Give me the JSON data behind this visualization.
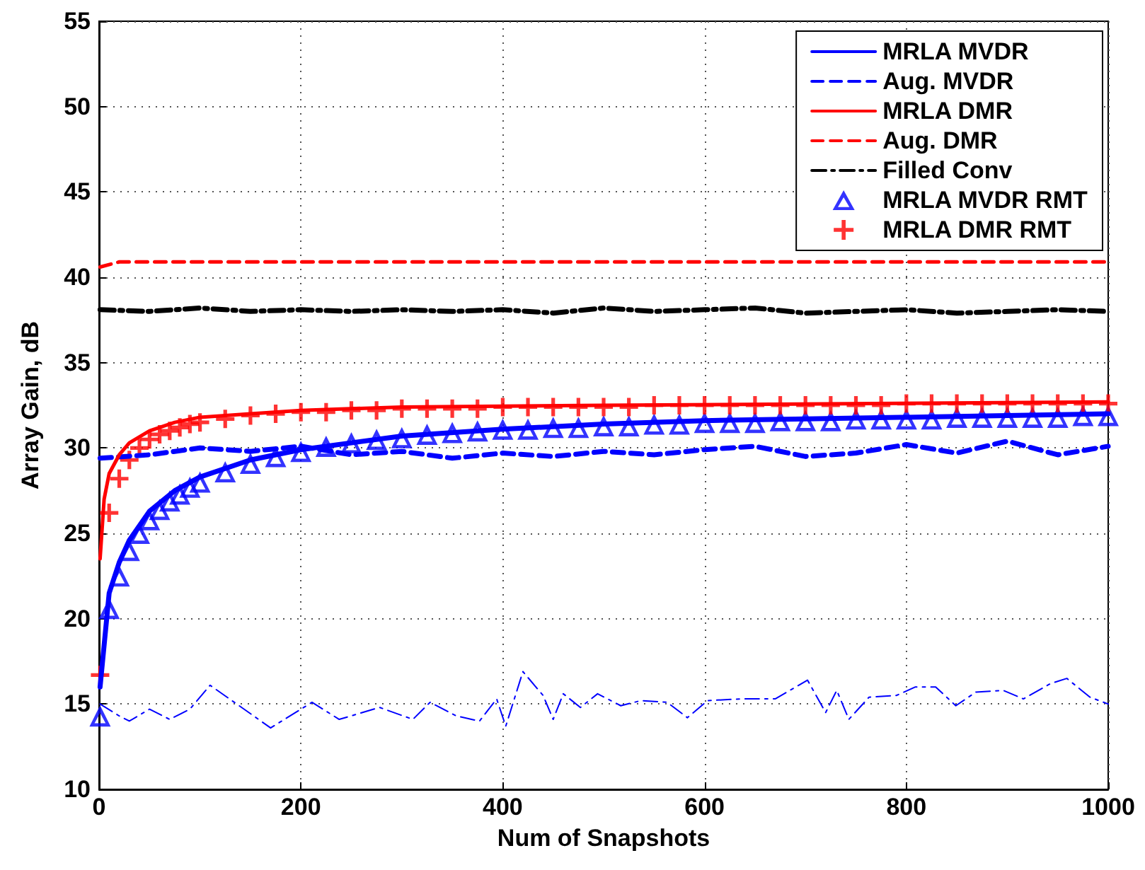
{
  "chart_data": {
    "type": "line",
    "xlabel": "Num of Snapshots",
    "ylabel": "Array Gain, dB",
    "xlim": [
      0,
      1000
    ],
    "xticks": [
      0,
      200,
      400,
      600,
      800,
      1000
    ],
    "ylim": [
      10,
      55
    ],
    "yticks": [
      10,
      15,
      20,
      25,
      30,
      35,
      40,
      45,
      50,
      55
    ],
    "grid": true,
    "legend": "top right",
    "series": [
      {
        "name": "MRLA MVDR",
        "color": "#0000ff",
        "line_style": "solid",
        "marker": "none",
        "x": [
          1,
          10,
          20,
          30,
          50,
          75,
          100,
          150,
          200,
          300,
          400,
          500,
          600,
          700,
          800,
          900,
          1000
        ],
        "values": [
          16,
          21.5,
          23.3,
          24.6,
          26.3,
          27.5,
          28.3,
          29.3,
          29.9,
          30.7,
          31.1,
          31.4,
          31.6,
          31.7,
          31.8,
          31.9,
          32.0
        ]
      },
      {
        "name": "Aug. MVDR",
        "color": "#0000ff",
        "line_style": "dashed",
        "marker": "none",
        "x": [
          1,
          50,
          100,
          150,
          200,
          250,
          300,
          350,
          400,
          450,
          500,
          550,
          600,
          650,
          700,
          750,
          800,
          850,
          900,
          950,
          1000
        ],
        "values": [
          29.4,
          29.6,
          30,
          29.8,
          30.1,
          29.6,
          29.8,
          29.4,
          29.7,
          29.5,
          29.8,
          29.6,
          29.9,
          30.1,
          29.5,
          29.7,
          30.2,
          29.7,
          30.4,
          29.6,
          30.1
        ]
      },
      {
        "name": "MRLA DMR",
        "color": "#ff0000",
        "line_style": "solid",
        "marker": "none",
        "x": [
          1,
          5,
          10,
          20,
          30,
          50,
          75,
          100,
          150,
          200,
          300,
          500,
          1000
        ],
        "values": [
          23.5,
          27,
          28.5,
          29.6,
          30.3,
          31,
          31.5,
          31.8,
          32,
          32.2,
          32.4,
          32.5,
          32.7
        ]
      },
      {
        "name": "Aug. DMR",
        "color": "#ff0000",
        "line_style": "dashed",
        "marker": "none",
        "x": [
          1,
          20,
          1000
        ],
        "values": [
          40.6,
          40.9,
          40.9
        ]
      },
      {
        "name": "Filled Conv",
        "color": "#000000",
        "line_style": "dashdot",
        "marker": "none",
        "x": [
          1,
          50,
          100,
          150,
          200,
          250,
          300,
          350,
          400,
          450,
          500,
          550,
          600,
          650,
          700,
          750,
          800,
          850,
          900,
          950,
          1000
        ],
        "values": [
          38.1,
          38.0,
          38.2,
          38.0,
          38.1,
          38.0,
          38.1,
          38.0,
          38.1,
          37.9,
          38.2,
          38.0,
          38.1,
          38.2,
          37.9,
          38.0,
          38.1,
          37.9,
          38.0,
          38.1,
          38.0
        ]
      },
      {
        "type": "scatter",
        "name": "MRLA MVDR RMT",
        "color": "#0000ff",
        "marker": "triangle",
        "x": [
          1,
          10,
          20,
          30,
          40,
          50,
          60,
          70,
          80,
          90,
          100,
          125,
          150,
          175,
          200,
          225,
          250,
          275,
          300,
          325,
          350,
          375,
          400,
          425,
          450,
          475,
          500,
          525,
          550,
          575,
          600,
          625,
          650,
          675,
          700,
          725,
          750,
          775,
          800,
          825,
          850,
          875,
          900,
          925,
          950,
          975,
          1000
        ],
        "values": [
          14.3,
          20.6,
          22.5,
          24,
          25,
          25.8,
          26.4,
          26.9,
          27.3,
          27.7,
          28,
          28.6,
          29.1,
          29.5,
          29.8,
          30.1,
          30.3,
          30.5,
          30.6,
          30.8,
          30.9,
          31.0,
          31.1,
          31.1,
          31.2,
          31.2,
          31.3,
          31.3,
          31.4,
          31.4,
          31.5,
          31.5,
          31.5,
          31.6,
          31.6,
          31.6,
          31.7,
          31.7,
          31.7,
          31.7,
          31.8,
          31.8,
          31.8,
          31.8,
          31.8,
          31.9,
          31.9
        ]
      },
      {
        "type": "scatter",
        "name": "MRLA DMR RMT",
        "color": "#ff0000",
        "marker": "cross",
        "x": [
          1,
          10,
          20,
          30,
          40,
          50,
          60,
          70,
          80,
          90,
          100,
          125,
          150,
          175,
          200,
          225,
          250,
          275,
          300,
          325,
          350,
          375,
          400,
          425,
          450,
          475,
          500,
          525,
          550,
          575,
          600,
          625,
          650,
          675,
          700,
          725,
          750,
          775,
          800,
          825,
          850,
          875,
          900,
          925,
          950,
          975,
          1000
        ],
        "values": [
          16.7,
          26.2,
          28.2,
          29.3,
          30,
          30.5,
          30.8,
          31,
          31.2,
          31.4,
          31.5,
          31.7,
          31.9,
          32,
          32.1,
          32.1,
          32.2,
          32.2,
          32.3,
          32.3,
          32.3,
          32.3,
          32.4,
          32.4,
          32.4,
          32.4,
          32.4,
          32.4,
          32.5,
          32.5,
          32.5,
          32.5,
          32.5,
          32.5,
          32.5,
          32.5,
          32.5,
          32.5,
          32.6,
          32.6,
          32.6,
          32.6,
          32.6,
          32.6,
          32.6,
          32.6,
          32.6
        ]
      },
      {
        "color": "#0000ff",
        "line_style": "dashdot",
        "marker": "none",
        "x": [
          1,
          20,
          30,
          50,
          70,
          90,
          110,
          170,
          211,
          238,
          278,
          311,
          328,
          354,
          377,
          394,
          403,
          420,
          440,
          450,
          460,
          477,
          494,
          517,
          537,
          563,
          583,
          603,
          636,
          670,
          702,
          720,
          731,
          743,
          763,
          790,
          809,
          829,
          849,
          869,
          896,
          916,
          943,
          959,
          982,
          1000
        ],
        "values": [
          15,
          14.3,
          14,
          14.7,
          14.1,
          14.7,
          16.1,
          13.6,
          15.1,
          14.1,
          14.8,
          14.1,
          15.1,
          14.3,
          14,
          15.3,
          13.7,
          16.9,
          15.5,
          14.1,
          15.6,
          14.8,
          15.6,
          14.9,
          15.2,
          15.1,
          14.2,
          15.2,
          15.3,
          15.3,
          16.4,
          14.5,
          15.8,
          14.1,
          15.4,
          15.5,
          16,
          16,
          14.9,
          15.7,
          15.8,
          15.3,
          16.2,
          16.5,
          15.4,
          15
        ]
      }
    ]
  }
}
